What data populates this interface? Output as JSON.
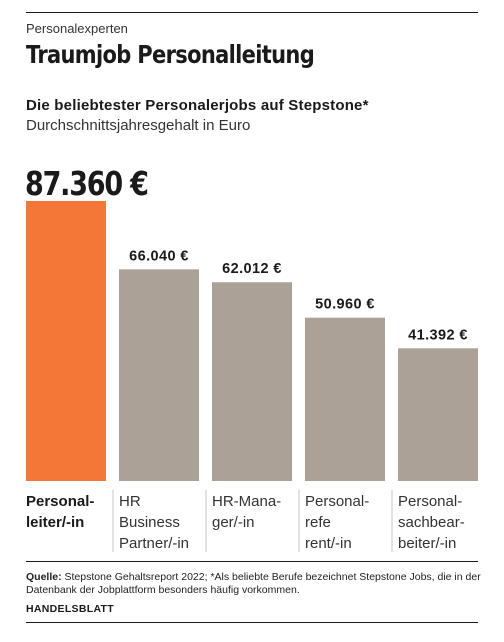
{
  "kicker": "Personalexperten",
  "title": "Traumjob Personalleitung",
  "source_label": "Quelle:",
  "source_text": "Stepstone Gehaltsreport 2022; *Als beliebte Berufe bezeichnet Stepstone Jobs, die in der Datenbank der Jobplattform besonders häufig vorkommen.",
  "brand": "HANDELSBLATT",
  "colors": {
    "highlight": "#f47737",
    "bar": "#aba196",
    "text": "#1a1a1a"
  },
  "chart_data": {
    "type": "bar",
    "title": "Die beliebtester Personalerjobs auf Stepstone*",
    "subtitle": "Durchschnittsjahresgehalt in Euro",
    "categories": [
      [
        "Personal-",
        "leiter/-in"
      ],
      [
        "HR",
        "Business",
        "Partner/-in"
      ],
      [
        "HR-Mana-",
        "ger/-in"
      ],
      [
        "Personal-",
        "refe",
        "rent/-in"
      ],
      [
        "Personal-",
        "sachbear-",
        "beiter/-in"
      ]
    ],
    "values": [
      87360,
      66040,
      62012,
      50960,
      41392
    ],
    "labels": [
      "87.360 €",
      "66.040 €",
      "62.012 €",
      "50.960 €",
      "41.392 €"
    ],
    "highlight_index": 0,
    "ylim": [
      0,
      87360
    ],
    "grid": false
  }
}
